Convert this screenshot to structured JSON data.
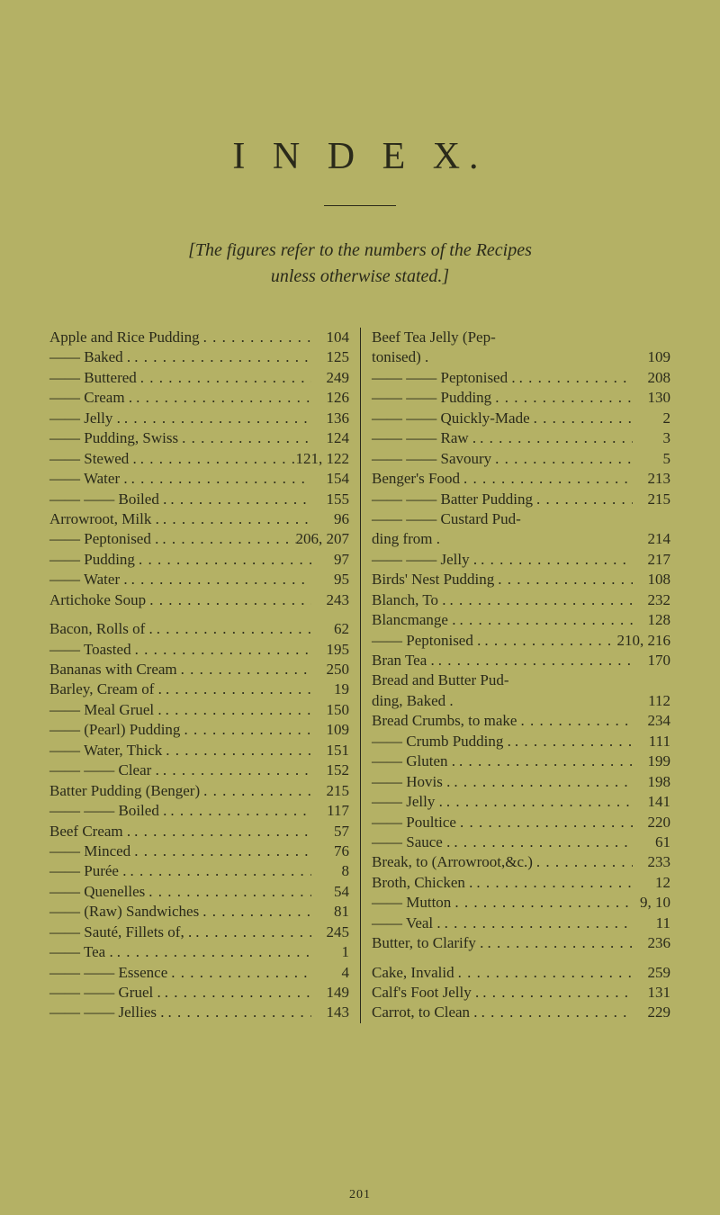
{
  "title": "I N D E X.",
  "intro_line1": "[The figures refer to the numbers of the Recipes",
  "intro_line2": "unless otherwise stated.]",
  "footer": "201",
  "col_left": [
    {
      "label": "Apple and Rice Pudding",
      "page": "104"
    },
    {
      "label": "—— Baked .",
      "page": "125"
    },
    {
      "label": "—— Buttered",
      "page": "249"
    },
    {
      "label": "—— Cream .",
      "page": "126"
    },
    {
      "label": "—— Jelly .",
      "page": "136"
    },
    {
      "label": "—— Pudding, Swiss",
      "page": "124"
    },
    {
      "label": "—— Stewed .",
      "page": "121, 122"
    },
    {
      "label": "—— Water .",
      "page": "154"
    },
    {
      "label": "—— —— Boiled .",
      "page": "155"
    },
    {
      "label": "Arrowroot, Milk .",
      "page": "96"
    },
    {
      "label": "—— Peptonised .",
      "page": "206, 207"
    },
    {
      "label": "—— Pudding",
      "page": "97"
    },
    {
      "label": "—— Water .",
      "page": "95"
    },
    {
      "label": "Artichoke Soup",
      "page": "243"
    },
    {
      "gap": true
    },
    {
      "label": "Bacon, Rolls of .",
      "page": "62"
    },
    {
      "label": "—— Toasted",
      "page": "195"
    },
    {
      "label": "Bananas with Cream",
      "page": "250"
    },
    {
      "label": "Barley, Cream of .",
      "page": "19"
    },
    {
      "label": "—— Meal Gruel .",
      "page": "150"
    },
    {
      "label": "—— (Pearl) Pudding",
      "page": "109"
    },
    {
      "label": "—— Water, Thick",
      "page": "151"
    },
    {
      "label": "—— —— Clear .",
      "page": "152"
    },
    {
      "label": "Batter Pudding (Benger)",
      "page": "215"
    },
    {
      "label": "—— —— Boiled .",
      "page": "117"
    },
    {
      "label": "Beef Cream .",
      "page": "57"
    },
    {
      "label": "—— Minced",
      "page": "76"
    },
    {
      "label": "—— Purée .",
      "page": "8"
    },
    {
      "label": "—— Quenelles",
      "page": "54"
    },
    {
      "label": "—— (Raw) Sandwiches",
      "page": "81"
    },
    {
      "label": "—— Sauté, Fillets of, .",
      "page": "245"
    },
    {
      "label": "—— Tea .",
      "page": "1"
    },
    {
      "label": "—— —— Essence",
      "page": "4"
    },
    {
      "label": "—— —— Gruel .",
      "page": "149"
    },
    {
      "label": "—— —— Jellies .",
      "page": "143"
    }
  ],
  "col_right": [
    {
      "label": "Beef  Tea  Jelly  (Pep-",
      "page": ""
    },
    {
      "label": "            tonised) .",
      "page": "109",
      "nodots": true
    },
    {
      "label": "—— —— Peptonised .",
      "page": "208"
    },
    {
      "label": "—— —— Pudding",
      "page": "130"
    },
    {
      "label": "—— —— Quickly-Made",
      "page": "2"
    },
    {
      "label": "—— —— Raw .",
      "page": "3"
    },
    {
      "label": "—— —— Savoury",
      "page": "5"
    },
    {
      "label": "Benger's Food",
      "page": "213"
    },
    {
      "label": "—— —— Batter Pudding",
      "page": "215"
    },
    {
      "label": "—— —— Custard Pud-",
      "page": ""
    },
    {
      "label": "            ding from .",
      "page": "214",
      "nodots": true
    },
    {
      "label": "—— —— Jelly .",
      "page": "217"
    },
    {
      "label": "Birds' Nest Pudding",
      "page": "108"
    },
    {
      "label": "Blanch, To .",
      "page": "232"
    },
    {
      "label": "Blancmange .",
      "page": "128"
    },
    {
      "label": "—— Peptonised .",
      "page": "210, 216"
    },
    {
      "label": "Bran Tea .",
      "page": "170"
    },
    {
      "label": "Bread and Butter Pud-",
      "page": ""
    },
    {
      "label": "      ding, Baked .",
      "page": "112",
      "nodots": true
    },
    {
      "label": "Bread Crumbs, to make",
      "page": "234"
    },
    {
      "label": "—— Crumb Pudding .",
      "page": "111"
    },
    {
      "label": "—— Gluten .",
      "page": "199"
    },
    {
      "label": "—— Hovis .",
      "page": "198"
    },
    {
      "label": "—— Jelly .",
      "page": "141"
    },
    {
      "label": "—— Poultice",
      "page": "220"
    },
    {
      "label": "—— Sauce .",
      "page": "61"
    },
    {
      "label": "Break, to (Arrowroot,&c.)",
      "page": "233"
    },
    {
      "label": "Broth, Chicken .",
      "page": "12"
    },
    {
      "label": "—— Mutton",
      "page": "9, 10"
    },
    {
      "label": "—— Veal .",
      "page": "11"
    },
    {
      "label": "Butter, to Clarify .",
      "page": "236"
    },
    {
      "gap": true
    },
    {
      "label": "Cake, Invalid",
      "page": "259"
    },
    {
      "label": "Calf's Foot Jelly .",
      "page": "131"
    },
    {
      "label": "Carrot, to Clean .",
      "page": "229"
    }
  ]
}
